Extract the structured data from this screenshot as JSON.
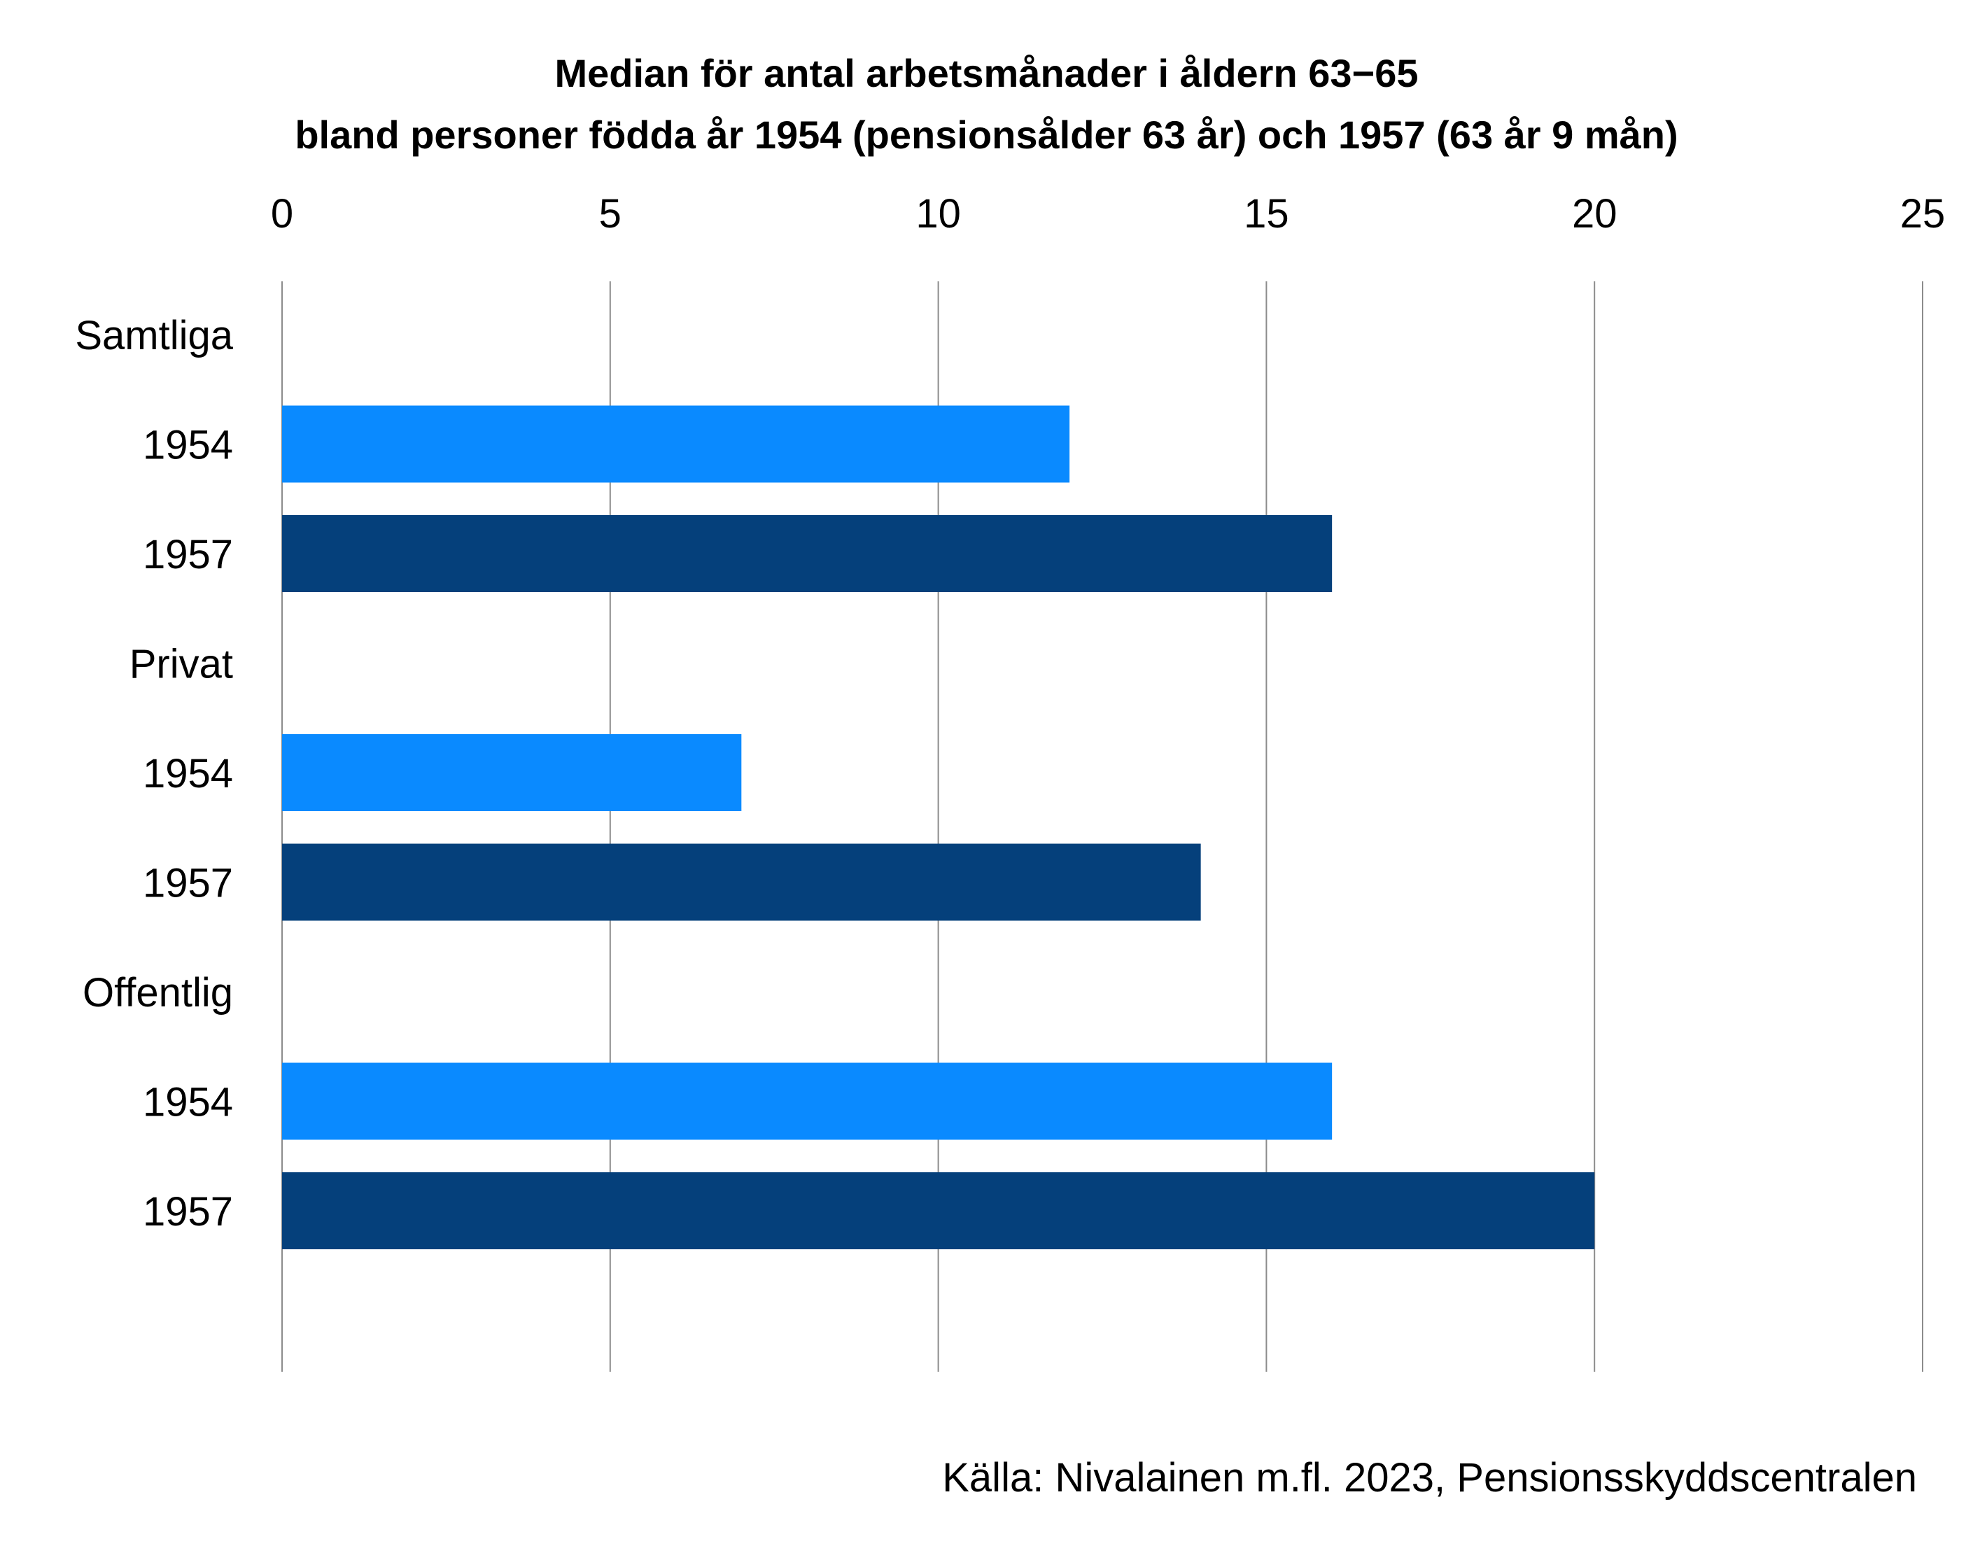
{
  "title": {
    "line1": "Median för antal arbetsmånader i åldern 63−65",
    "line2": "bland personer födda år 1954 (pensionsålder 63 år) och 1957 (63 år 9 mån)"
  },
  "source": "Källa: Nivalainen m.fl. 2023, Pensionsskyddscentralen",
  "colors": {
    "series_1954": "#0a8aff",
    "series_1957": "#05407b",
    "gridline": "#8c8c8c",
    "text": "#000000"
  },
  "chart_data": {
    "type": "bar",
    "orientation": "horizontal",
    "xlim": [
      0,
      25
    ],
    "xticks": [
      0,
      5,
      10,
      15,
      20,
      25
    ],
    "x_axis_position": "top",
    "grid": true,
    "legend": "none",
    "rows": [
      {
        "label": "Samtliga",
        "kind": "group"
      },
      {
        "label": "1954",
        "kind": "bar",
        "series": "1954",
        "group": "Samtliga",
        "value": 12
      },
      {
        "label": "1957",
        "kind": "bar",
        "series": "1957",
        "group": "Samtliga",
        "value": 16
      },
      {
        "label": "Privat",
        "kind": "group"
      },
      {
        "label": "1954",
        "kind": "bar",
        "series": "1954",
        "group": "Privat",
        "value": 7
      },
      {
        "label": "1957",
        "kind": "bar",
        "series": "1957",
        "group": "Privat",
        "value": 14
      },
      {
        "label": "Offentlig",
        "kind": "group"
      },
      {
        "label": "1954",
        "kind": "bar",
        "series": "1954",
        "group": "Offentlig",
        "value": 16
      },
      {
        "label": "1957",
        "kind": "bar",
        "series": "1957",
        "group": "Offentlig",
        "value": 20
      }
    ]
  }
}
